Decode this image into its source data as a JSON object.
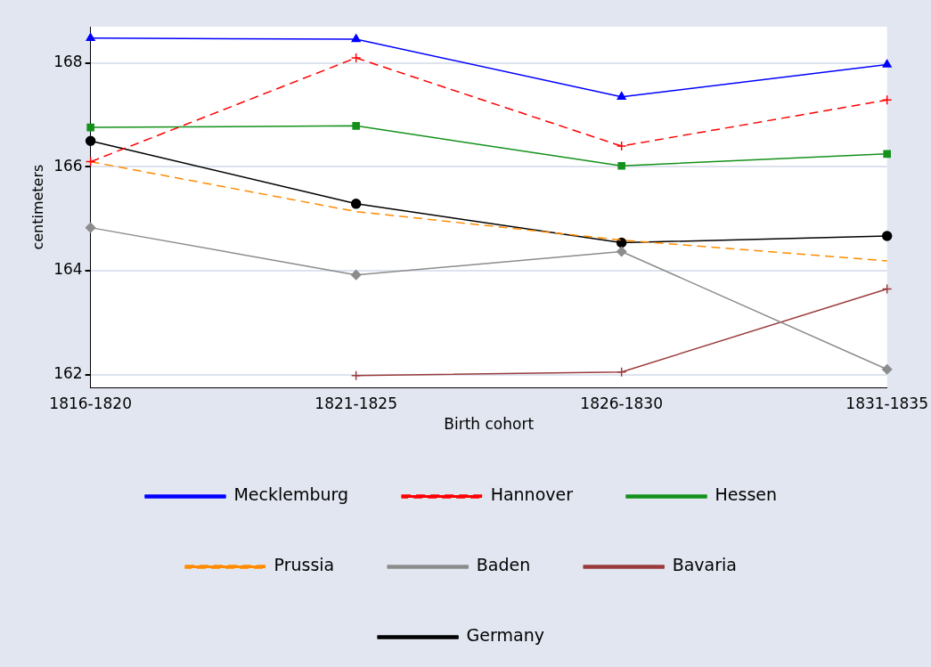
{
  "chart_data": {
    "type": "line",
    "xlabel": "Birth cohort",
    "ylabel": "centimeters",
    "categories": [
      "1816-1820",
      "1821-1825",
      "1826-1830",
      "1831-1835"
    ],
    "ylim": [
      161.75,
      168.7
    ],
    "yticks": [
      162,
      164,
      166,
      168
    ],
    "grid": "y",
    "legend": "bottom",
    "series": [
      {
        "name": "Mecklemburg",
        "color": "#0000ff",
        "marker": "triangle",
        "line_style": "solid",
        "values": [
          168.48,
          168.46,
          167.35,
          167.97
        ]
      },
      {
        "name": "Hannover",
        "color": "#ff0000",
        "marker": "cross",
        "line_style": "dashed",
        "values": [
          166.1,
          168.1,
          166.4,
          167.29
        ]
      },
      {
        "name": "Hessen",
        "color": "#13911a",
        "marker": "square",
        "line_style": "solid",
        "values": [
          166.76,
          166.79,
          166.02,
          166.25
        ]
      },
      {
        "name": "Prussia",
        "color": "#ff8c00",
        "marker": "none",
        "line_style": "dashed",
        "values": [
          166.1,
          165.14,
          164.59,
          164.19
        ]
      },
      {
        "name": "Baden",
        "color": "#8c8c8c",
        "marker": "diamond",
        "line_style": "solid",
        "values": [
          164.83,
          163.92,
          164.37,
          162.1
        ]
      },
      {
        "name": "Bavaria",
        "color": "#9a3b3b",
        "marker": "cross",
        "line_style": "solid",
        "values": [
          null,
          161.98,
          162.05,
          163.65
        ]
      },
      {
        "name": "Germany",
        "color": "#000000",
        "marker": "circle",
        "line_style": "solid",
        "values": [
          166.5,
          165.29,
          164.54,
          164.67
        ]
      }
    ]
  }
}
